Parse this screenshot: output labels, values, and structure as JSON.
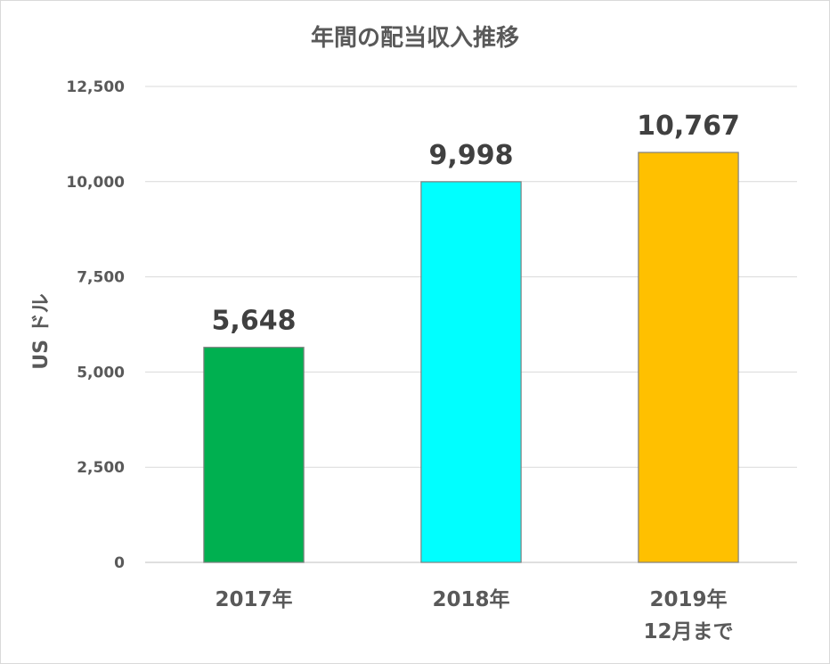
{
  "chart_data": {
    "type": "bar",
    "title": "年間の配当収入推移",
    "ylabel": "US ドル",
    "xlabel": "",
    "ylim": [
      0,
      12500
    ],
    "yticks": [
      0,
      2500,
      5000,
      7500,
      10000,
      12500
    ],
    "ytick_labels": [
      "0",
      "2,500",
      "5,000",
      "7,500",
      "10,000",
      "12,500"
    ],
    "categories": [
      [
        "2017年"
      ],
      [
        "2018年"
      ],
      [
        "2019年",
        "12月まで"
      ]
    ],
    "values": [
      5648,
      9998,
      10767
    ],
    "value_labels": [
      "5,648",
      "9,998",
      "10,767"
    ],
    "colors": [
      "#00b050",
      "#00ffff",
      "#ffc000"
    ],
    "grid": true,
    "legend": "none"
  }
}
